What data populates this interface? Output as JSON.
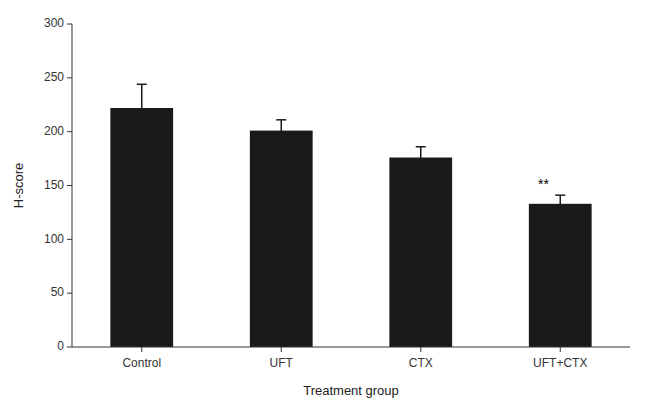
{
  "chart_data": {
    "type": "bar",
    "categories": [
      "Control",
      "UFT",
      "CTX",
      "UFT+CTX"
    ],
    "values": [
      222,
      201,
      176,
      133
    ],
    "errors": [
      22,
      10,
      10,
      8
    ],
    "color": "#1a1a1a",
    "xlabel": "Treatment group",
    "ylabel": "H-score",
    "ylim": [
      0,
      300
    ],
    "yticks": [
      0,
      50,
      100,
      150,
      200,
      250,
      300
    ],
    "annotations": [
      {
        "category": "UFT+CTX",
        "text": "**"
      }
    ],
    "grid": false
  }
}
